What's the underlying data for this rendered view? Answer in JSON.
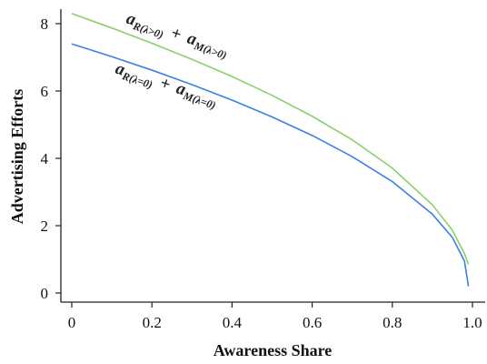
{
  "chart_data": {
    "type": "line",
    "xlabel": "Awareness Share",
    "ylabel": "Advertising Efforts",
    "xlim": [
      0,
      1.0
    ],
    "ylim": [
      0,
      8
    ],
    "x_ticks": [
      0,
      0.2,
      0.4,
      0.6,
      0.8,
      1.0
    ],
    "x_tick_labels": [
      "0",
      "0.2",
      "0.4",
      "0.6",
      "0.8",
      "1.0"
    ],
    "y_ticks": [
      0,
      2,
      4,
      6,
      8
    ],
    "y_tick_labels": [
      "0",
      "2",
      "4",
      "6",
      "8"
    ],
    "grid": false,
    "legend": "none",
    "series": [
      {
        "name": "a_{R(λ>0)} + a_{M(λ>0)}",
        "color": "#8ccf6a",
        "x": [
          0,
          0.1,
          0.2,
          0.3,
          0.4,
          0.5,
          0.6,
          0.7,
          0.8,
          0.9,
          0.95,
          0.98,
          0.99
        ],
        "y": [
          8.3,
          7.87,
          7.42,
          6.94,
          6.43,
          5.87,
          5.25,
          4.55,
          3.71,
          2.62,
          1.86,
          1.17,
          0.85
        ]
      },
      {
        "name": "a_{R(λ=0)} + a_{M(λ=0)}",
        "color": "#3d7fe6",
        "x": [
          0,
          0.1,
          0.2,
          0.3,
          0.4,
          0.5,
          0.6,
          0.7,
          0.8,
          0.9,
          0.95,
          0.98,
          0.99
        ],
        "y": [
          7.4,
          7.02,
          6.62,
          6.19,
          5.73,
          5.23,
          4.68,
          4.05,
          3.31,
          2.34,
          1.65,
          0.95,
          0.2
        ]
      }
    ],
    "annotations": [
      {
        "parts": [
          "a",
          "R(λ>0)",
          "+",
          "a",
          "M(λ>0)"
        ]
      },
      {
        "parts": [
          "a",
          "R(λ=0)",
          "+",
          "a",
          "M(λ=0)"
        ]
      }
    ]
  }
}
